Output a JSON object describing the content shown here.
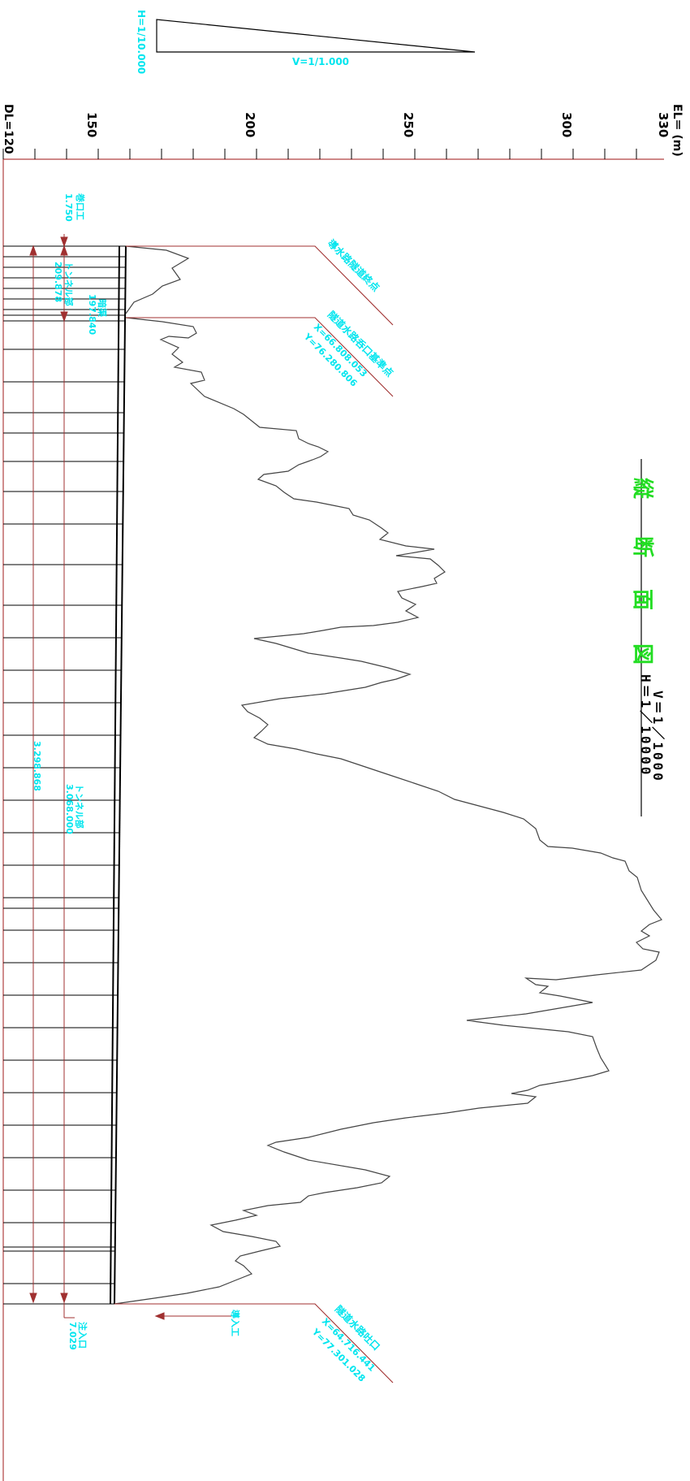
{
  "title": {
    "main_chars": [
      "縦",
      "断",
      "面",
      "図"
    ],
    "scale_v": "V＝1／1000",
    "scale_h": "H＝1／10000"
  },
  "scale_indicator": {
    "h_label": "H=1/10.000",
    "v_label": "V=1/1.000"
  },
  "axis": {
    "unit": "EL＝ (m)",
    "datum": "DL=120",
    "ticks": [
      "150",
      "200",
      "250",
      "300",
      "330"
    ]
  },
  "annotations": {
    "outlet_box": "巻口工",
    "outlet_box_len": "1.750",
    "tunnel_short_label": "トンネル部",
    "tunnel_short_len": "209.878",
    "tunnel_lower_label": "暗渠",
    "tunnel_lower_len": "197.840",
    "tunnel_main_label": "トンネル部",
    "tunnel_main_len": "3.068.000",
    "total_len": "3.298.868",
    "inlet_label": "注入口",
    "inlet_len": "7.029",
    "inflow_label": "導入工",
    "point1_name": "導水路隧道終点",
    "point2_name": "隧道水路呑口基準点",
    "point2_x": "X=66.808.053",
    "point2_y": "Y=76.280.806",
    "point3_name": "隧道水路吐口",
    "point3_x": "X=64.716.441",
    "point3_y": "Y=77.301.028"
  }
}
